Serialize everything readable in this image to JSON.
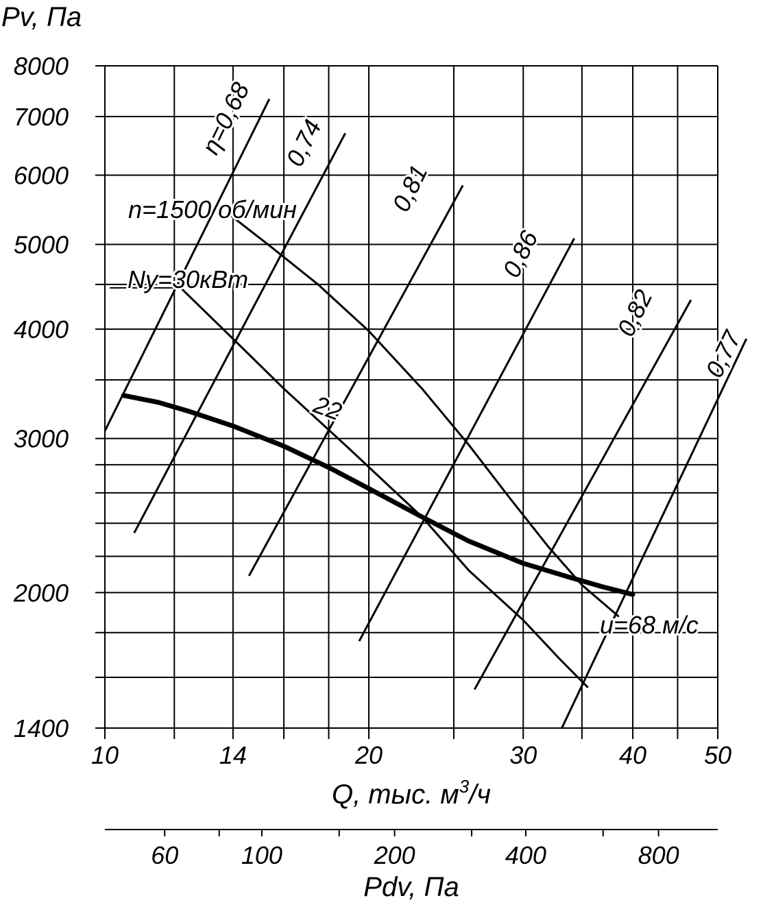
{
  "chart_data": {
    "type": "line",
    "title": "",
    "ylabel": "Pv, Па",
    "xlabel": "Q, тыс. м³/ч",
    "x_scale": "log",
    "y_scale": "log",
    "xlim": [
      10,
      50
    ],
    "ylim": [
      1400,
      8000
    ],
    "x_tick_labels": [
      10,
      14,
      20,
      30,
      40,
      50
    ],
    "y_tick_labels": [
      1400,
      2000,
      3000,
      4000,
      5000,
      6000,
      7000,
      8000
    ],
    "x_gridlines": [
      10,
      12,
      14,
      16,
      18,
      20,
      25,
      30,
      35,
      40,
      45,
      50
    ],
    "y_gridlines": [
      1400,
      1600,
      1800,
      2000,
      2200,
      2400,
      2600,
      2800,
      3000,
      3500,
      4000,
      4500,
      5000,
      6000,
      7000,
      8000
    ],
    "grid": true,
    "secondary_axis": {
      "label": "Pdv, Па",
      "tick_labels": [
        60,
        100,
        200,
        400,
        800
      ],
      "extra_ticks": [
        80,
        150,
        300,
        600
      ],
      "q_at_pdv": {
        "60": 11.7,
        "80": 13.5,
        "100": 15.1,
        "150": 18.5,
        "200": 21.4,
        "300": 26.2,
        "400": 30.2,
        "600": 37.0,
        "800": 42.8
      }
    },
    "series": [
      {
        "name": "n=1500 об/мин",
        "role": "pressure",
        "points": [
          [
            10.5,
            3360
          ],
          [
            11.5,
            3300
          ],
          [
            12.5,
            3220
          ],
          [
            14,
            3100
          ],
          [
            16,
            2940
          ],
          [
            18,
            2780
          ],
          [
            20,
            2630
          ],
          [
            23,
            2440
          ],
          [
            26,
            2290
          ],
          [
            30,
            2160
          ],
          [
            34,
            2080
          ],
          [
            37,
            2030
          ],
          [
            40,
            1990
          ]
        ]
      },
      {
        "name": "Ny=30кВт",
        "role": "power",
        "points": [
          [
            13.9,
            5400
          ],
          [
            15.5,
            4960
          ],
          [
            17.5,
            4500
          ],
          [
            20,
            3980
          ],
          [
            23,
            3420
          ],
          [
            26,
            2950
          ],
          [
            29,
            2560
          ],
          [
            32,
            2260
          ],
          [
            35,
            2040
          ],
          [
            38.5,
            1880
          ]
        ]
      },
      {
        "name": "22",
        "role": "power",
        "points": [
          [
            12.2,
            4460
          ],
          [
            14,
            3900
          ],
          [
            16,
            3420
          ],
          [
            19,
            2920
          ],
          [
            23,
            2440
          ],
          [
            26,
            2120
          ],
          [
            30,
            1860
          ],
          [
            33,
            1680
          ],
          [
            35.5,
            1560
          ]
        ]
      }
    ],
    "efficiency_lines": [
      {
        "label": "η=0,68",
        "from": [
          10,
          3060
        ],
        "to": [
          15.4,
          7330
        ]
      },
      {
        "label": "0,74",
        "from": [
          10.8,
          2340
        ],
        "to": [
          18.8,
          6700
        ]
      },
      {
        "label": "0,81",
        "from": [
          14.6,
          2090
        ],
        "to": [
          25.6,
          5840
        ]
      },
      {
        "label": "0,86",
        "from": [
          19.5,
          1760
        ],
        "to": [
          34.3,
          5080
        ]
      },
      {
        "label": "0,82",
        "from": [
          26.4,
          1550
        ],
        "to": [
          46.6,
          4320
        ]
      },
      {
        "label": "0,77",
        "from": [
          33.2,
          1400
        ],
        "to": [
          53.9,
          3900
        ]
      }
    ],
    "annotations": [
      {
        "text": "u=68 м/с",
        "at": [
          40,
          1990
        ]
      }
    ]
  }
}
